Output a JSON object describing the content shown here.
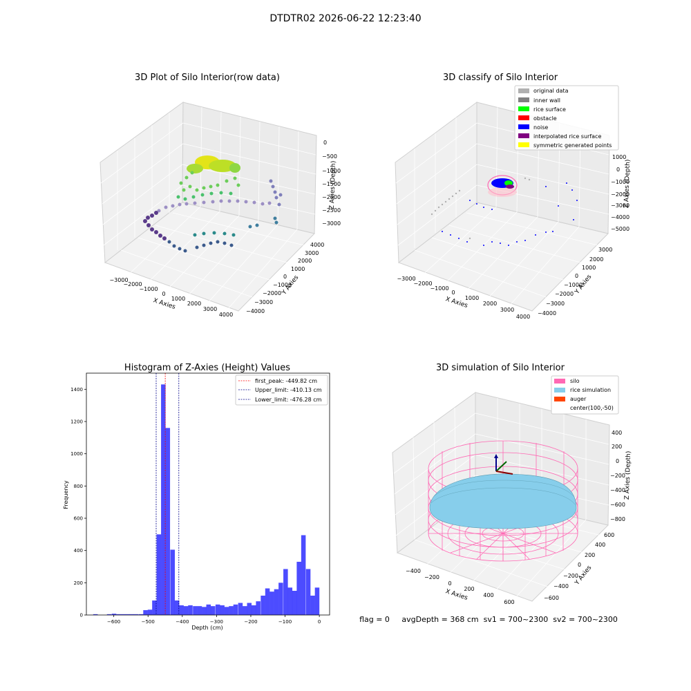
{
  "figure": {
    "suptitle": "DTDTR02 2026-06-22 12:23:40",
    "footer": "flag = 0     avgDepth = 368 cm  sv1 = 700~2300  sv2 = 700~2300"
  },
  "colors": {
    "hist_bar": "#0000ff",
    "first_peak": "#ff0000",
    "limit": "#00008b",
    "silo": "#ff69b4",
    "rice_simulation": "#87ceeb",
    "auger": "#ff4500",
    "original_data": "#b0b0b0",
    "inner_wall": "#808080",
    "rice_surface": "#00ff00",
    "obstacle": "#ff0000",
    "noise": "#0000ff",
    "interpolated_rice_surface": "#800080",
    "symmetric_generated_points": "#ffff00"
  },
  "chart_data": [
    {
      "type": "scatter",
      "title": "3D Plot of Silo Interior(row data)",
      "xlabel": "X Axies",
      "ylabel": "Y Axies",
      "zlabel": "Z Axies (Depth)",
      "x_ticks": [
        "−3000",
        "−2000",
        "−1000",
        "0",
        "1000",
        "2000",
        "3000",
        "4000"
      ],
      "y_ticks": [
        "4000",
        "3000",
        "2000",
        "1000",
        "0",
        "−1000",
        "−2000",
        "−3000",
        "−4000"
      ],
      "z_ticks": [
        "0",
        "−500",
        "−1000",
        "−1500",
        "−2000",
        "−2500",
        "−3000"
      ],
      "colormap": "viridis",
      "grid": true
    },
    {
      "type": "scatter",
      "title": "3D classify of Silo Interior",
      "xlabel": "X Axies",
      "ylabel": "Y Axies",
      "zlabel": "Z Axies (Depth)",
      "x_ticks": [
        "−3000",
        "−2000",
        "−1000",
        "0",
        "1000",
        "2000",
        "3000",
        "4000"
      ],
      "y_ticks": [
        "3000",
        "2000",
        "1000",
        "0",
        "−1000",
        "−2000",
        "−3000",
        "−4000"
      ],
      "z_ticks": [
        "1000",
        "0",
        "−1000",
        "−2000",
        "−3000",
        "−4000",
        "−5000"
      ],
      "legend": [
        "original data",
        "inner wall",
        "rice surface",
        "obstacle",
        "noise",
        "interpolated rice surface",
        "symmetric generated points"
      ],
      "legend_position": "top-right",
      "grid": true
    },
    {
      "type": "bar",
      "title": "Histogram of Z-Axies (Height) Values",
      "xlabel": "Depth (cm)",
      "ylabel": "Frequency",
      "xlim": [
        -680,
        30
      ],
      "ylim": [
        0,
        1500
      ],
      "x_ticks": [
        -600,
        -500,
        -400,
        -300,
        -200,
        -100,
        0
      ],
      "x_tick_labels": [
        "−600",
        "−500",
        "−400",
        "−300",
        "−200",
        "−100",
        "0"
      ],
      "y_ticks": [
        0,
        200,
        400,
        600,
        800,
        1000,
        1200,
        1400
      ],
      "y_tick_labels": [
        "0",
        "200",
        "400",
        "600",
        "800",
        "1000",
        "1200",
        "1400"
      ],
      "bin_width": 13.2,
      "bins": [
        {
          "x0": -660,
          "v": 5
        },
        {
          "x0": -620,
          "v": 5
        },
        {
          "x0": -606,
          "v": 8
        },
        {
          "x0": -593,
          "v": 5
        },
        {
          "x0": -580,
          "v": 5
        },
        {
          "x0": -567,
          "v": 5
        },
        {
          "x0": -554,
          "v": 5
        },
        {
          "x0": -541,
          "v": 5
        },
        {
          "x0": -527,
          "v": 5
        },
        {
          "x0": -514,
          "v": 30
        },
        {
          "x0": -501,
          "v": 33
        },
        {
          "x0": -488,
          "v": 90
        },
        {
          "x0": -475,
          "v": 500
        },
        {
          "x0": -462,
          "v": 1430
        },
        {
          "x0": -449,
          "v": 1160
        },
        {
          "x0": -435,
          "v": 405
        },
        {
          "x0": -422,
          "v": 90
        },
        {
          "x0": -409,
          "v": 60
        },
        {
          "x0": -396,
          "v": 55
        },
        {
          "x0": -383,
          "v": 60
        },
        {
          "x0": -369,
          "v": 55
        },
        {
          "x0": -356,
          "v": 55
        },
        {
          "x0": -343,
          "v": 50
        },
        {
          "x0": -330,
          "v": 65
        },
        {
          "x0": -317,
          "v": 55
        },
        {
          "x0": -303,
          "v": 65
        },
        {
          "x0": -290,
          "v": 60
        },
        {
          "x0": -277,
          "v": 50
        },
        {
          "x0": -264,
          "v": 55
        },
        {
          "x0": -251,
          "v": 65
        },
        {
          "x0": -237,
          "v": 75
        },
        {
          "x0": -224,
          "v": 55
        },
        {
          "x0": -211,
          "v": 75
        },
        {
          "x0": -198,
          "v": 60
        },
        {
          "x0": -185,
          "v": 85
        },
        {
          "x0": -171,
          "v": 120
        },
        {
          "x0": -158,
          "v": 165
        },
        {
          "x0": -145,
          "v": 145
        },
        {
          "x0": -132,
          "v": 160
        },
        {
          "x0": -119,
          "v": 200
        },
        {
          "x0": -105,
          "v": 285
        },
        {
          "x0": -92,
          "v": 170
        },
        {
          "x0": -79,
          "v": 150
        },
        {
          "x0": -66,
          "v": 330
        },
        {
          "x0": -53,
          "v": 495
        },
        {
          "x0": -39,
          "v": 285
        },
        {
          "x0": -26,
          "v": 120
        },
        {
          "x0": -13,
          "v": 170
        }
      ],
      "vlines": [
        {
          "name": "first_peak: -449.82 cm",
          "x": -449.82,
          "color": "#ff0000"
        },
        {
          "name": "Upper_limit: -410.13 cm",
          "x": -410.13,
          "color": "#00008b"
        },
        {
          "name": "Lower_limit: -476.28 cm",
          "x": -476.28,
          "color": "#00008b"
        }
      ],
      "legend_position": "top-right"
    },
    {
      "type": "wireframe",
      "title": "3D simulation of Silo Interior",
      "xlabel": "X Axies",
      "ylabel": "Y Axies",
      "zlabel": "Z Axies (Depth)",
      "x_ticks": [
        "−400",
        "−200",
        "0",
        "200",
        "400",
        "600"
      ],
      "y_ticks": [
        "600",
        "400",
        "200",
        "0",
        "−200",
        "−400",
        "−600"
      ],
      "z_ticks": [
        "400",
        "200",
        "0",
        "−200",
        "−400",
        "−600",
        "−800"
      ],
      "legend": [
        "silo",
        "rice simulation",
        "auger",
        "center(100,-50)"
      ],
      "legend_position": "top-right",
      "grid": true
    }
  ]
}
